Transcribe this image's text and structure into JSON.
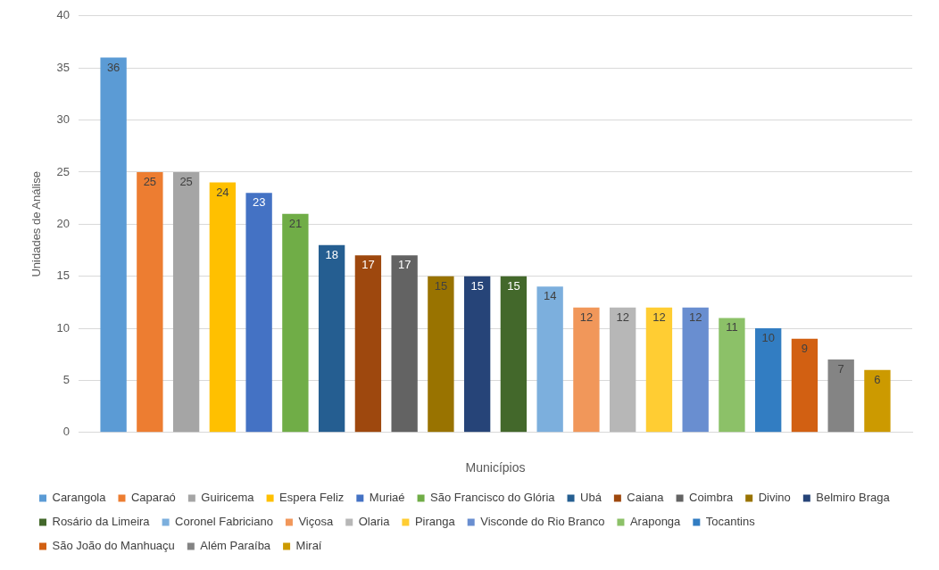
{
  "chart_data": {
    "type": "bar",
    "xlabel": "Municípios",
    "ylabel": "Unidades de Análise",
    "categories": [
      null
    ],
    "series": [
      {
        "name": "Carangola",
        "color": "#5b9bd5",
        "values": [
          36
        ]
      },
      {
        "name": "Caparaó",
        "color": "#ed7d31",
        "values": [
          25
        ]
      },
      {
        "name": "Guiricema",
        "color": "#a5a5a5",
        "values": [
          25
        ]
      },
      {
        "name": "Espera Feliz",
        "color": "#ffc000",
        "values": [
          24
        ]
      },
      {
        "name": "Muriaé",
        "color": "#4472c4",
        "values": [
          23
        ]
      },
      {
        "name": "São Francisco do Glória",
        "color": "#70ad47",
        "values": [
          21
        ]
      },
      {
        "name": "Ubá",
        "color": "#255e91",
        "values": [
          18
        ]
      },
      {
        "name": "Caiana",
        "color": "#9e480e",
        "values": [
          17
        ]
      },
      {
        "name": "Coimbra",
        "color": "#636363",
        "values": [
          17
        ]
      },
      {
        "name": "Divino",
        "color": "#997300",
        "values": [
          15
        ]
      },
      {
        "name": "Belmiro Braga",
        "color": "#264478",
        "values": [
          15
        ]
      },
      {
        "name": "Rosário da Limeira",
        "color": "#43682b",
        "values": [
          15
        ]
      },
      {
        "name": "Coronel Fabriciano",
        "color": "#7cafdd",
        "values": [
          14
        ]
      },
      {
        "name": "Viçosa",
        "color": "#f1975a",
        "values": [
          12
        ]
      },
      {
        "name": "Olaria",
        "color": "#b7b7b7",
        "values": [
          12
        ]
      },
      {
        "name": "Piranga",
        "color": "#ffcd33",
        "values": [
          12
        ]
      },
      {
        "name": "Visconde do Rio Branco",
        "color": "#698ed0",
        "values": [
          12
        ]
      },
      {
        "name": "Araponga",
        "color": "#8cc168",
        "values": [
          11
        ]
      },
      {
        "name": "Tocantins",
        "color": "#327dc2",
        "values": [
          10
        ]
      },
      {
        "name": "São João do Manhuaçu",
        "color": "#d26012",
        "values": [
          9
        ]
      },
      {
        "name": "Além Paraíba",
        "color": "#848484",
        "values": [
          7
        ]
      },
      {
        "name": "Miraí",
        "color": "#cc9a00",
        "values": [
          6
        ]
      }
    ],
    "ylim": [
      0,
      40
    ],
    "yticks": [
      0,
      5,
      10,
      15,
      20,
      25,
      30,
      35,
      40
    ],
    "grid": "y",
    "legend": "bottom",
    "data_labels": true
  }
}
